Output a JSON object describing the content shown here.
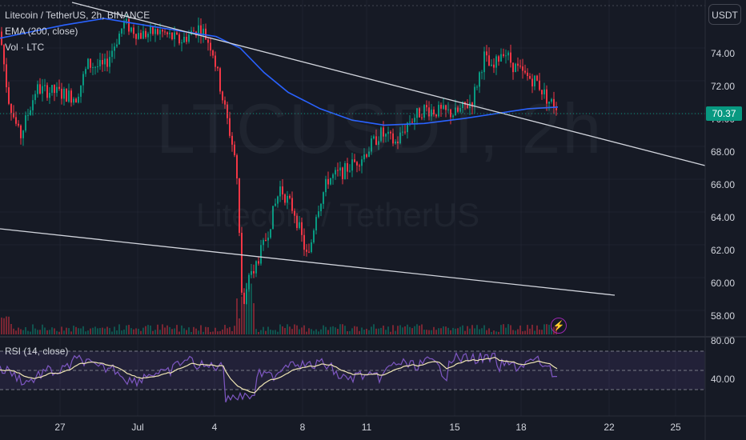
{
  "legend": {
    "title": "Litecoin / TetherUS, 2h, BINANCE",
    "ema": "EMA (200, close)",
    "vol": "Vol · LTC"
  },
  "watermark": {
    "symbol": "LTCUSDT, 2h",
    "name": "Litecoin / TetherUS"
  },
  "currency_button": "USDT",
  "last_price": "70.37",
  "price_axis": [
    "74.00",
    "72.00",
    "70.00",
    "68.00",
    "66.00",
    "64.00",
    "62.00",
    "60.00",
    "58.00"
  ],
  "rsi": {
    "label": "RSI (14, close)",
    "axis": [
      "80.00",
      "40.00"
    ]
  },
  "time_axis": [
    "27",
    "Jul",
    "4",
    "8",
    "11",
    "15",
    "18",
    "22",
    "25"
  ],
  "colors": {
    "background": "#161a25",
    "up": "#089981",
    "down": "#f23645",
    "ema": "#2962ff",
    "rsi": "#7e57c2",
    "rsi_band": "#7e57c2",
    "trendline": "#d1d4dc"
  },
  "icons": {
    "alert": "lightning-icon"
  }
}
